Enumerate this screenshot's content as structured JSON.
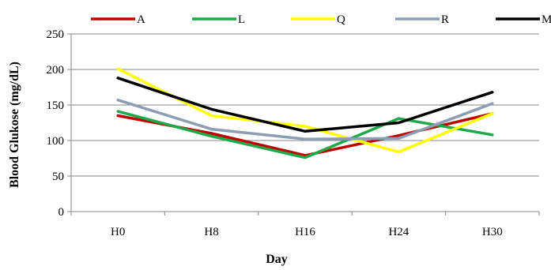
{
  "chart_data": {
    "type": "line",
    "title": "",
    "xlabel": "Day",
    "ylabel": "Blood Glukose (mg/dL)",
    "categories": [
      "H0",
      "H8",
      "H16",
      "H24",
      "H30"
    ],
    "ylim": [
      0,
      250
    ],
    "yticks": [
      0,
      50,
      100,
      150,
      200,
      250
    ],
    "grid": "horizontal",
    "legend_position": "top",
    "series": [
      {
        "name": "A",
        "color": "#C00000",
        "values": [
          135,
          110,
          79,
          107,
          138
        ]
      },
      {
        "name": "L",
        "color": "#1FA84A",
        "values": [
          141,
          106,
          76,
          131,
          108
        ]
      },
      {
        "name": "Q",
        "color": "#FFFF00",
        "values": [
          201,
          135,
          120,
          84,
          138
        ]
      },
      {
        "name": "R",
        "color": "#8C9EB5",
        "values": [
          157,
          116,
          102,
          103,
          152
        ]
      },
      {
        "name": "M",
        "color": "#000000",
        "values": [
          188,
          144,
          113,
          125,
          168
        ]
      }
    ]
  }
}
